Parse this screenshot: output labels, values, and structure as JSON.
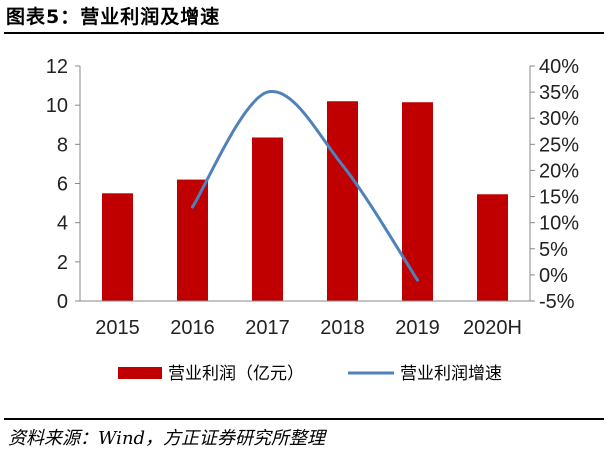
{
  "caption": "图表5：营业利润及增速",
  "source": "资料来源：Wind，方正证券研究所整理",
  "chart_data": {
    "type": "bar",
    "categories": [
      "2015",
      "2016",
      "2017",
      "2018",
      "2019",
      "2020H"
    ],
    "series": [
      {
        "name": "营业利润（亿元）",
        "type": "bar",
        "axis": "left",
        "color": "#c00000",
        "values": [
          5.5,
          6.2,
          8.35,
          10.2,
          10.15,
          5.45
        ]
      },
      {
        "name": "营业利润增速",
        "type": "line",
        "axis": "right",
        "color": "#4f81bd",
        "smooth": true,
        "values": [
          null,
          0.13,
          0.35,
          0.21,
          -0.01,
          null
        ]
      }
    ],
    "y_left": {
      "min": 0,
      "max": 12,
      "step": 2,
      "ticks": [
        "0",
        "2",
        "4",
        "6",
        "8",
        "10",
        "12"
      ]
    },
    "y_right": {
      "min": -0.05,
      "max": 0.4,
      "step": 0.05,
      "ticks": [
        "-5%",
        "0%",
        "5%",
        "10%",
        "15%",
        "20%",
        "25%",
        "30%",
        "35%",
        "40%"
      ]
    },
    "grid": false,
    "legend_position": "bottom"
  }
}
